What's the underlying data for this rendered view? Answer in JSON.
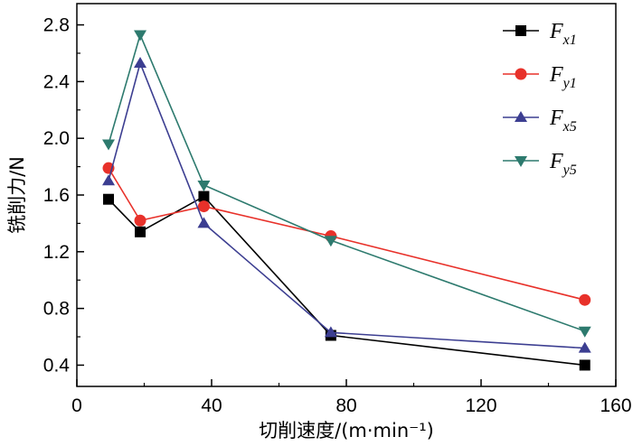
{
  "chart_data": {
    "type": "line",
    "xlabel": "切削速度/(m·min⁻¹)",
    "ylabel": "铣削力/N",
    "xlim": [
      0,
      160
    ],
    "ylim": [
      0.4,
      2.8
    ],
    "xticks": [
      0,
      40,
      80,
      120,
      160
    ],
    "yticks": [
      0.4,
      0.8,
      1.2,
      1.6,
      2.0,
      2.4,
      2.8
    ],
    "x": [
      9.4,
      18.8,
      37.7,
      75.4,
      150.8
    ],
    "grid": false,
    "legend_position": "top-right",
    "series": [
      {
        "name": "Fx1",
        "label_main": "F",
        "label_sub": "x1",
        "color": "#000000",
        "marker": "square",
        "values": [
          1.57,
          1.34,
          1.59,
          0.61,
          0.4
        ]
      },
      {
        "name": "Fy1",
        "label_main": "F",
        "label_sub": "y1",
        "color": "#e8312a",
        "marker": "circle",
        "values": [
          1.79,
          1.42,
          1.52,
          1.31,
          0.86
        ]
      },
      {
        "name": "Fx5",
        "label_main": "F",
        "label_sub": "x5",
        "color": "#3c3e91",
        "marker": "triangle-up",
        "values": [
          1.7,
          2.53,
          1.4,
          0.63,
          0.52
        ]
      },
      {
        "name": "Fy5",
        "label_main": "F",
        "label_sub": "y5",
        "color": "#2d7a6e",
        "marker": "triangle-down",
        "values": [
          1.96,
          2.73,
          1.67,
          1.28,
          0.64
        ]
      }
    ]
  }
}
